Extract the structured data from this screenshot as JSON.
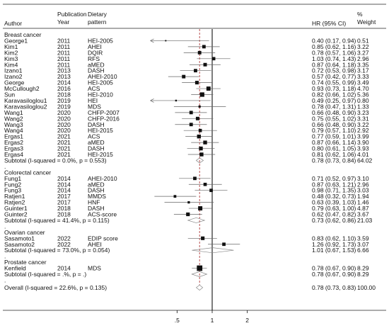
{
  "header": {
    "author": "Author",
    "year_line1": "Publication",
    "year_line2": "Year",
    "pattern_line1": "Dietary",
    "pattern_line2": "pattern",
    "hr": "HR (95% CI)",
    "weight_line1": "%",
    "weight_line2": "Weight"
  },
  "chart_data": {
    "type": "forest",
    "x_scale": "log",
    "reference_line": 1,
    "overall_line": 0.78,
    "x_ticks": [
      ".5",
      "1",
      "2"
    ],
    "x_tick_values": [
      0.5,
      1,
      2
    ],
    "groups": [
      {
        "name": "Breast cancer",
        "studies": [
          {
            "author": "George1",
            "year": "2011",
            "pattern": "HEI-2005",
            "hr": 0.4,
            "lo": 0.17,
            "hi": 0.94,
            "ci_text": "0.40 (0.17, 0.94)",
            "weight": "0.51"
          },
          {
            "author": "Kim1",
            "year": "2011",
            "pattern": "AHEI",
            "hr": 0.85,
            "lo": 0.62,
            "hi": 1.16,
            "ci_text": "0.85 (0.62, 1.16)",
            "weight": "3.22"
          },
          {
            "author": "Kim2",
            "year": "2011",
            "pattern": "DQIR",
            "hr": 0.78,
            "lo": 0.57,
            "hi": 1.06,
            "ci_text": "0.78 (0.57, 1.06)",
            "weight": "3.27"
          },
          {
            "author": "Kim3",
            "year": "2011",
            "pattern": "RFS",
            "hr": 1.03,
            "lo": 0.74,
            "hi": 1.43,
            "ci_text": "1.03 (0.74, 1.43)",
            "weight": "2.96"
          },
          {
            "author": "Kim4",
            "year": "2011",
            "pattern": "aMED",
            "hr": 0.87,
            "lo": 0.64,
            "hi": 1.18,
            "ci_text": "0.87 (0.64, 1.18)",
            "weight": "3.35"
          },
          {
            "author": "Izano1",
            "year": "2013",
            "pattern": "DASH",
            "hr": 0.72,
            "lo": 0.53,
            "hi": 0.98,
            "ci_text": "0.72 (0.53, 0.98)",
            "weight": "3.17"
          },
          {
            "author": "Izano2",
            "year": "2013",
            "pattern": "AHEI-2010",
            "hr": 0.57,
            "lo": 0.42,
            "hi": 0.77,
            "ci_text": "0.57 (0.42, 0.77)",
            "weight": "3.33"
          },
          {
            "author": "George",
            "year": "2014",
            "pattern": "HEI-2005",
            "hr": 0.74,
            "lo": 0.55,
            "hi": 0.99,
            "ci_text": "0.74 (0.55, 0.99)",
            "weight": "3.49"
          },
          {
            "author": "McCullough2",
            "year": "2016",
            "pattern": "ACS",
            "hr": 0.93,
            "lo": 0.73,
            "hi": 1.18,
            "ci_text": "0.93 (0.73, 1.18)",
            "weight": "4.70"
          },
          {
            "author": "Sun",
            "year": "2018",
            "pattern": "HEI-2010",
            "hr": 0.82,
            "lo": 0.66,
            "hi": 1.02,
            "ci_text": "0.82 (0.66, 1.02)",
            "weight": "5.36"
          },
          {
            "author": "Karavasiloglou1",
            "year": "2019",
            "pattern": "HEI",
            "hr": 0.49,
            "lo": 0.25,
            "hi": 0.97,
            "ci_text": "0.49 (0.25, 0.97)",
            "weight": "0.80"
          },
          {
            "author": "Karavasiloglou2",
            "year": "2019",
            "pattern": "MDS",
            "hr": 0.78,
            "lo": 0.47,
            "hi": 1.31,
            "ci_text": "0.78 (0.47, 1.31)",
            "weight": "1.33"
          },
          {
            "author": "Wang1",
            "year": "2020",
            "pattern": "CHFP-2007",
            "hr": 0.66,
            "lo": 0.48,
            "hi": 0.9,
            "ci_text": "0.66 (0.48, 0.90)",
            "weight": "3.23"
          },
          {
            "author": "Wang2",
            "year": "2020",
            "pattern": "CHFP-2016",
            "hr": 0.75,
            "lo": 0.55,
            "hi": 1.02,
            "ci_text": "0.75 (0.55, 1.02)",
            "weight": "3.31"
          },
          {
            "author": "Wang3",
            "year": "2020",
            "pattern": "DASH",
            "hr": 0.66,
            "lo": 0.48,
            "hi": 0.9,
            "ci_text": "0.66 (0.48, 0.90)",
            "weight": "3.22"
          },
          {
            "author": "Wang4",
            "year": "2020",
            "pattern": "HEI-2015",
            "hr": 0.79,
            "lo": 0.57,
            "hi": 1.1,
            "ci_text": "0.79 (0.57, 1.10)",
            "weight": "2.92"
          },
          {
            "author": "Ergas1",
            "year": "2021",
            "pattern": "ACS",
            "hr": 0.77,
            "lo": 0.59,
            "hi": 1.01,
            "ci_text": "0.77 (0.59, 1.01)",
            "weight": "3.99"
          },
          {
            "author": "Ergas2",
            "year": "2021",
            "pattern": "aMED",
            "hr": 0.87,
            "lo": 0.66,
            "hi": 1.14,
            "ci_text": "0.87 (0.66, 1.14)",
            "weight": "3.90"
          },
          {
            "author": "Ergas3",
            "year": "2021",
            "pattern": "DASH",
            "hr": 0.8,
            "lo": 0.61,
            "hi": 1.05,
            "ci_text": "0.80 (0.61, 1.05)",
            "weight": "3.93"
          },
          {
            "author": "Ergas4",
            "year": "2021",
            "pattern": "HEI-2015",
            "hr": 0.81,
            "lo": 0.62,
            "hi": 1.06,
            "ci_text": "0.81 (0.62, 1.06)",
            "weight": "4.01"
          }
        ],
        "subtotal": {
          "label": "Subtotal  (I-squared = 0.0%, p = 0.553)",
          "hr": 0.78,
          "lo": 0.73,
          "hi": 0.84,
          "ci_text": "0.78 (0.73, 0.84)",
          "weight": "64.02"
        }
      },
      {
        "name": "Colorectal cancer",
        "studies": [
          {
            "author": "Fung1",
            "year": "2014",
            "pattern": "AHEI-2010",
            "hr": 0.71,
            "lo": 0.52,
            "hi": 0.97,
            "ci_text": "0.71 (0.52, 0.97)",
            "weight": "3.10"
          },
          {
            "author": "Fung2",
            "year": "2014",
            "pattern": "aMED",
            "hr": 0.87,
            "lo": 0.63,
            "hi": 1.21,
            "ci_text": "0.87 (0.63, 1.21)",
            "weight": "2.96"
          },
          {
            "author": "Fung3",
            "year": "2014",
            "pattern": "DASH",
            "hr": 0.98,
            "lo": 0.71,
            "hi": 1.35,
            "ci_text": "0.98 (0.71, 1.35)",
            "weight": "3.03"
          },
          {
            "author": "Ratjen1",
            "year": "2017",
            "pattern": "MMDS",
            "hr": 0.48,
            "lo": 0.32,
            "hi": 0.73,
            "ci_text": "0.48 (0.32, 0.73)",
            "weight": "1.94"
          },
          {
            "author": "Ratjen2",
            "year": "2017",
            "pattern": "HNF",
            "hr": 0.63,
            "lo": 0.39,
            "hi": 1.03,
            "ci_text": "0.63 (0.39, 1.03)",
            "weight": "1.46"
          },
          {
            "author": "Guinter1",
            "year": "2018",
            "pattern": "DASH",
            "hr": 0.79,
            "lo": 0.63,
            "hi": 1.0,
            "ci_text": "0.79 (0.63, 1.00)",
            "weight": "4.87"
          },
          {
            "author": "Guinter2",
            "year": "2018",
            "pattern": "ACS-score",
            "hr": 0.62,
            "lo": 0.47,
            "hi": 0.82,
            "ci_text": "0.62 (0.47, 0.82)",
            "weight": "3.67"
          }
        ],
        "subtotal": {
          "label": "Subtotal  (I-squared = 41.4%, p = 0.115)",
          "hr": 0.73,
          "lo": 0.62,
          "hi": 0.86,
          "ci_text": "0.73 (0.62, 0.86)",
          "weight": "21.03"
        }
      },
      {
        "name": "Ovarian cancer",
        "studies": [
          {
            "author": "Sasamoto1",
            "year": "2022",
            "pattern": "EDIP score",
            "hr": 0.83,
            "lo": 0.62,
            "hi": 1.1,
            "ci_text": "0.83 (0.62, 1.10)",
            "weight": "3.59"
          },
          {
            "author": "Sasamoto2",
            "year": "2022",
            "pattern": "AHEI",
            "hr": 1.26,
            "lo": 0.92,
            "hi": 1.73,
            "ci_text": "1.26 (0.92, 1.73)",
            "weight": "3.07"
          }
        ],
        "subtotal": {
          "label": "Subtotal  (I-squared = 73.0%, p = 0.054)",
          "hr": 1.01,
          "lo": 0.67,
          "hi": 1.53,
          "ci_text": "1.01 (0.67, 1.53)",
          "weight": "6.66"
        }
      },
      {
        "name": "Prostate cancer",
        "studies": [
          {
            "author": "Kenfield",
            "year": "2014",
            "pattern": "MDS",
            "hr": 0.78,
            "lo": 0.67,
            "hi": 0.9,
            "ci_text": "0.78 (0.67, 0.90)",
            "weight": "8.29"
          }
        ],
        "subtotal": {
          "label": "Subtotal  (I-squared = .%, p = .)",
          "hr": 0.78,
          "lo": 0.67,
          "hi": 0.9,
          "ci_text": "0.78 (0.67, 0.90)",
          "weight": "8.29"
        }
      }
    ],
    "overall": {
      "label": "Overall  (I-squared = 22.6%, p = 0.135)",
      "hr": 0.78,
      "lo": 0.73,
      "hi": 0.83,
      "ci_text": "0.78 (0.73, 0.83)",
      "weight": "100.00"
    }
  }
}
